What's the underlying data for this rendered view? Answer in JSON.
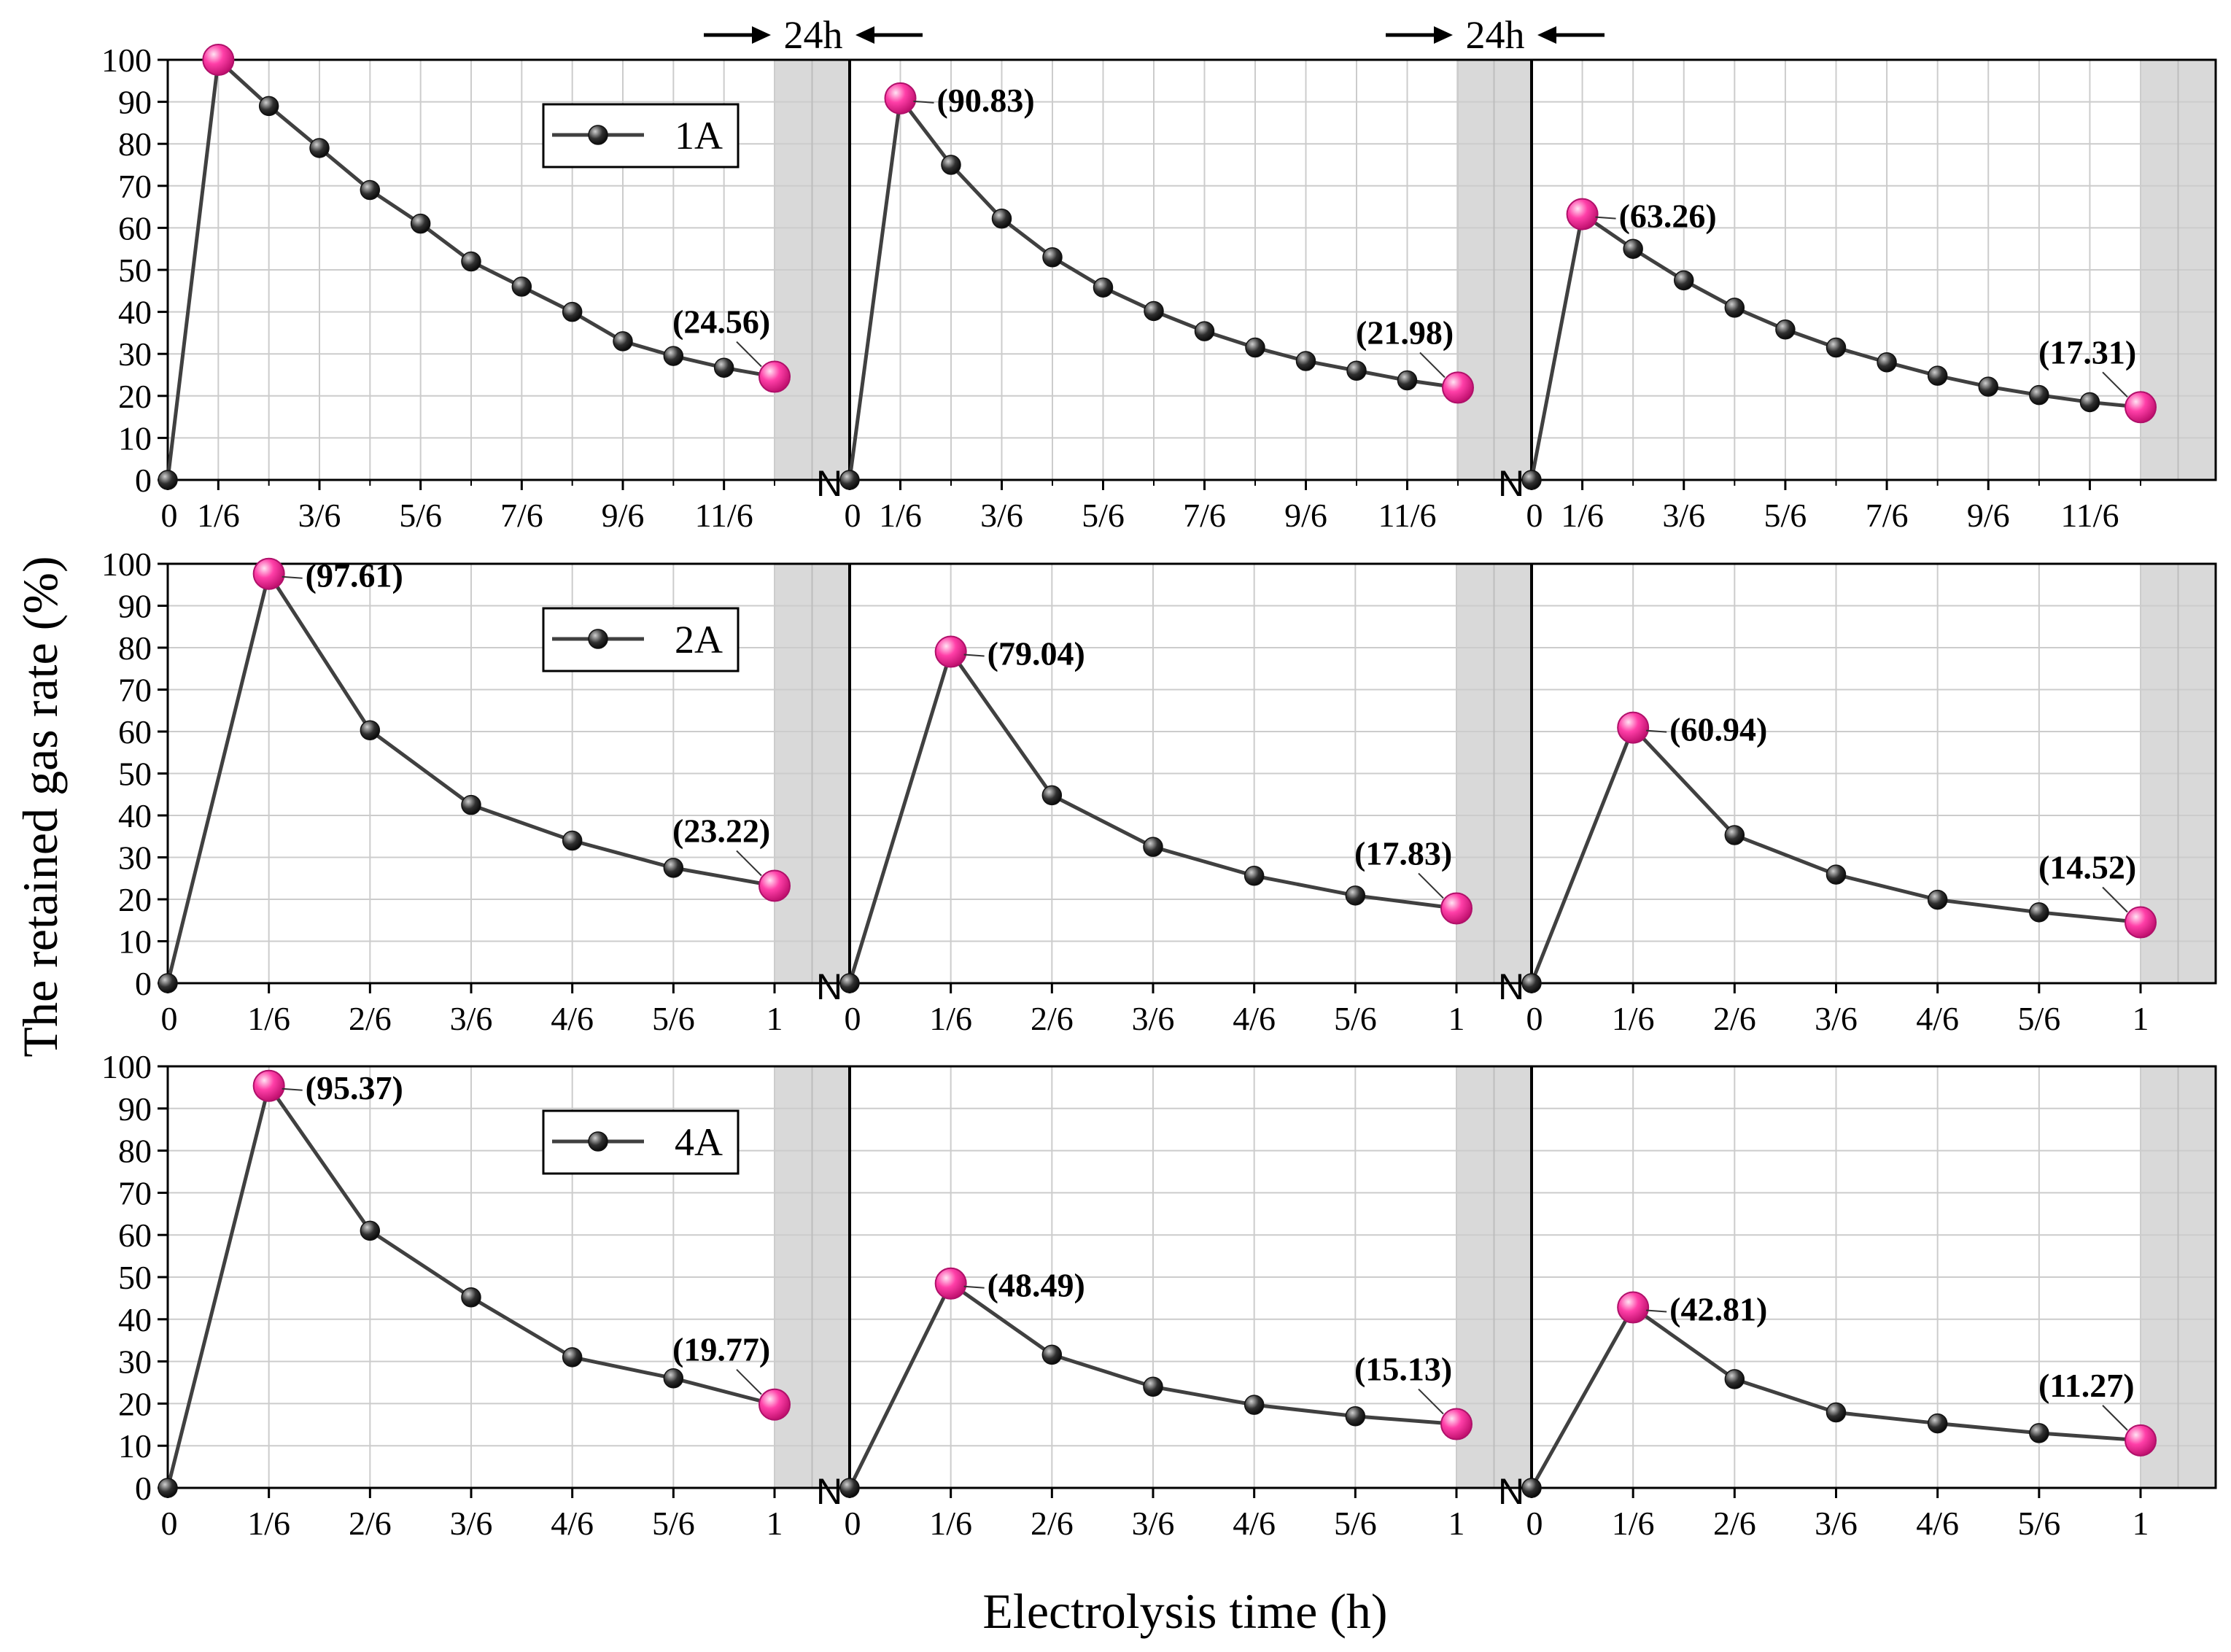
{
  "chart_data": {
    "type": "line",
    "xlabel": "Electrolysis time (h)",
    "ylabel": "The retained gas rate (%)",
    "ylim": [
      0,
      100
    ],
    "yticks": [
      0,
      10,
      20,
      30,
      40,
      50,
      60,
      70,
      80,
      90,
      100
    ],
    "gap_label": "24h",
    "gap_marker": "N",
    "colors": {
      "line": "#404040",
      "marker": "#303030",
      "highlight": "#ff3fa8"
    },
    "rows": [
      {
        "legend": "1A",
        "tick_labels": [
          "0",
          "1/6",
          "3/6",
          "5/6",
          "7/6",
          "9/6",
          "11/6"
        ],
        "tick_x": [
          0,
          1,
          3,
          5,
          7,
          9,
          11
        ],
        "cycles": [
          {
            "x": [
              0,
              1,
              2,
              3,
              4,
              5,
              6,
              7,
              8,
              9,
              10,
              11,
              12
            ],
            "y": [
              0,
              100,
              89,
              79,
              69,
              61,
              52,
              46,
              40,
              33,
              29.5,
              26.7,
              24.56
            ],
            "highlight": [
              1,
              12
            ],
            "annotations": [
              {
                "point": 12,
                "text": "(24.56)"
              }
            ]
          },
          {
            "x": [
              0,
              1,
              2,
              3,
              4,
              5,
              6,
              7,
              8,
              9,
              10,
              11,
              12
            ],
            "y": [
              0,
              90.83,
              75,
              62.2,
              53,
              45.8,
              40.2,
              35.4,
              31.5,
              28.3,
              26,
              23.7,
              21.98
            ],
            "highlight": [
              1,
              12
            ],
            "annotations": [
              {
                "point": 1,
                "text": "(90.83)"
              },
              {
                "point": 12,
                "text": "(21.98)"
              }
            ]
          },
          {
            "x": [
              0,
              1,
              2,
              3,
              4,
              5,
              6,
              7,
              8,
              9,
              10,
              11,
              12
            ],
            "y": [
              0,
              63.26,
              55,
              47.5,
              41,
              35.8,
              31.5,
              28,
              24.8,
              22.2,
              20.2,
              18.5,
              17.31
            ],
            "highlight": [
              1,
              12
            ],
            "annotations": [
              {
                "point": 1,
                "text": "(63.26)"
              },
              {
                "point": 12,
                "text": "(17.31)"
              }
            ]
          }
        ]
      },
      {
        "legend": "2A",
        "tick_labels": [
          "0",
          "1/6",
          "2/6",
          "3/6",
          "4/6",
          "5/6",
          "1"
        ],
        "tick_x": [
          0,
          1,
          2,
          3,
          4,
          5,
          6
        ],
        "cycles": [
          {
            "x": [
              0,
              1,
              2,
              3,
              4,
              5,
              6
            ],
            "y": [
              0,
              97.61,
              60.3,
              42.5,
              34,
              27.5,
              23.22
            ],
            "highlight": [
              1,
              6
            ],
            "annotations": [
              {
                "point": 1,
                "text": "(97.61)"
              },
              {
                "point": 6,
                "text": "(23.22)"
              }
            ]
          },
          {
            "x": [
              0,
              1,
              2,
              3,
              4,
              5,
              6
            ],
            "y": [
              0,
              79.04,
              44.8,
              32.5,
              25.6,
              20.9,
              17.83
            ],
            "highlight": [
              1,
              6
            ],
            "annotations": [
              {
                "point": 1,
                "text": "(79.04)"
              },
              {
                "point": 6,
                "text": "(17.83)"
              }
            ]
          },
          {
            "x": [
              0,
              1,
              2,
              3,
              4,
              5,
              6
            ],
            "y": [
              0,
              60.94,
              35.3,
              25.9,
              19.9,
              16.9,
              14.52
            ],
            "highlight": [
              1,
              6
            ],
            "annotations": [
              {
                "point": 1,
                "text": "(60.94)"
              },
              {
                "point": 6,
                "text": "(14.52)"
              }
            ]
          }
        ]
      },
      {
        "legend": "4A",
        "tick_labels": [
          "0",
          "1/6",
          "2/6",
          "3/6",
          "4/6",
          "5/6",
          "1"
        ],
        "tick_x": [
          0,
          1,
          2,
          3,
          4,
          5,
          6
        ],
        "cycles": [
          {
            "x": [
              0,
              1,
              2,
              3,
              4,
              5,
              6
            ],
            "y": [
              0,
              95.37,
              61,
              45.2,
              31,
              26,
              19.77
            ],
            "highlight": [
              1,
              6
            ],
            "annotations": [
              {
                "point": 1,
                "text": "(95.37)"
              },
              {
                "point": 6,
                "text": "(19.77)"
              }
            ]
          },
          {
            "x": [
              0,
              1,
              2,
              3,
              4,
              5,
              6
            ],
            "y": [
              0,
              48.49,
              31.6,
              24,
              19.7,
              17,
              15.13
            ],
            "highlight": [
              1,
              6
            ],
            "annotations": [
              {
                "point": 1,
                "text": "(48.49)"
              },
              {
                "point": 6,
                "text": "(15.13)"
              }
            ]
          },
          {
            "x": [
              0,
              1,
              2,
              3,
              4,
              5,
              6
            ],
            "y": [
              0,
              42.81,
              25.8,
              17.9,
              15.3,
              13,
              11.27
            ],
            "highlight": [
              1,
              6
            ],
            "annotations": [
              {
                "point": 1,
                "text": "(42.81)"
              },
              {
                "point": 6,
                "text": "(11.27)"
              }
            ]
          }
        ]
      }
    ]
  }
}
